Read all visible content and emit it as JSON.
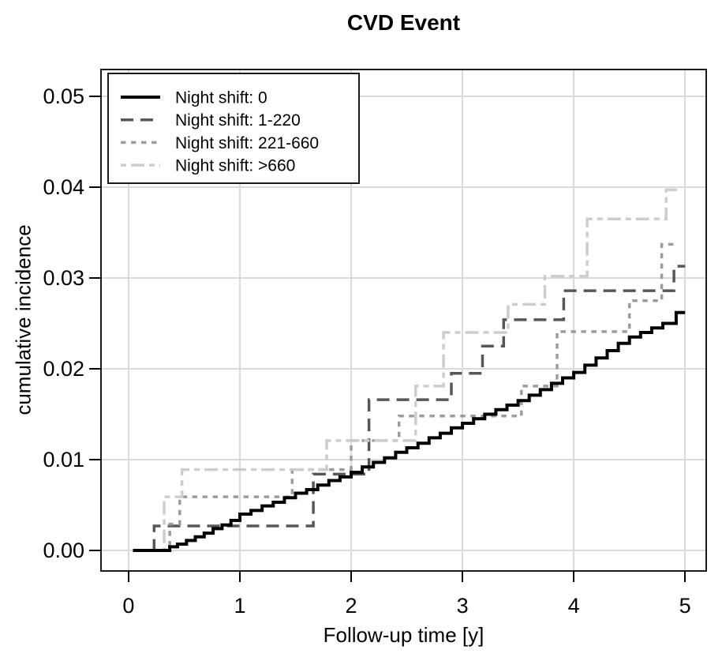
{
  "colors": {
    "background": "#FFFFFF",
    "text": "#000000",
    "grid": "#DADADA",
    "plot_border": "#1A1A1A",
    "legend_border": "#1A1A1A",
    "legend_fill": "#FFFFFF"
  },
  "chart_data": {
    "type": "line",
    "subtype": "step-function-cumulative-incidence",
    "title": "CVD Event",
    "xlabel": "Follow-up time [y]",
    "ylabel": "cumulative incidence",
    "xlim": [
      0,
      5
    ],
    "ylim": [
      0,
      0.05
    ],
    "grid": true,
    "legend_position": "top-left",
    "x_ticks": [
      {
        "value": 0,
        "label": "0"
      },
      {
        "value": 1,
        "label": "1"
      },
      {
        "value": 2,
        "label": "2"
      },
      {
        "value": 3,
        "label": "3"
      },
      {
        "value": 4,
        "label": "4"
      },
      {
        "value": 5,
        "label": "5"
      }
    ],
    "y_ticks": [
      {
        "value": 0.0,
        "label": "0.00"
      },
      {
        "value": 0.01,
        "label": "0.01"
      },
      {
        "value": 0.02,
        "label": "0.02"
      },
      {
        "value": 0.03,
        "label": "0.03"
      },
      {
        "value": 0.04,
        "label": "0.04"
      },
      {
        "value": 0.05,
        "label": "0.05"
      }
    ],
    "series": [
      {
        "name": "Night shift: 0",
        "color": "#000000",
        "dash": "solid",
        "end_x": 5.0,
        "points": [
          [
            0.04,
            0
          ],
          [
            0.37,
            0.0004
          ],
          [
            0.44,
            0.0007
          ],
          [
            0.52,
            0.0011
          ],
          [
            0.6,
            0.0015
          ],
          [
            0.68,
            0.0019
          ],
          [
            0.76,
            0.0024
          ],
          [
            0.84,
            0.0028
          ],
          [
            0.92,
            0.0033
          ],
          [
            1.0,
            0.004
          ],
          [
            1.1,
            0.0044
          ],
          [
            1.2,
            0.0049
          ],
          [
            1.3,
            0.0053
          ],
          [
            1.4,
            0.0058
          ],
          [
            1.5,
            0.0063
          ],
          [
            1.6,
            0.0067
          ],
          [
            1.7,
            0.0072
          ],
          [
            1.8,
            0.0077
          ],
          [
            1.9,
            0.0081
          ],
          [
            2.0,
            0.0086
          ],
          [
            2.1,
            0.0092
          ],
          [
            2.2,
            0.0097
          ],
          [
            2.3,
            0.0102
          ],
          [
            2.4,
            0.0108
          ],
          [
            2.5,
            0.0113
          ],
          [
            2.6,
            0.0118
          ],
          [
            2.7,
            0.0124
          ],
          [
            2.8,
            0.0129
          ],
          [
            2.9,
            0.0135
          ],
          [
            3.0,
            0.014
          ],
          [
            3.1,
            0.0145
          ],
          [
            3.2,
            0.015
          ],
          [
            3.3,
            0.0155
          ],
          [
            3.4,
            0.016
          ],
          [
            3.5,
            0.0165
          ],
          [
            3.6,
            0.0171
          ],
          [
            3.7,
            0.0177
          ],
          [
            3.8,
            0.0184
          ],
          [
            3.9,
            0.019
          ],
          [
            4.0,
            0.0196
          ],
          [
            4.1,
            0.0204
          ],
          [
            4.2,
            0.0212
          ],
          [
            4.3,
            0.022
          ],
          [
            4.4,
            0.0228
          ],
          [
            4.5,
            0.0235
          ],
          [
            4.6,
            0.024
          ],
          [
            4.7,
            0.0245
          ],
          [
            4.8,
            0.025
          ],
          [
            4.92,
            0.0262
          ]
        ]
      },
      {
        "name": "Night shift: 1-220",
        "color": "#575757",
        "dash": "longdash",
        "end_x": 5.0,
        "points": [
          [
            0.04,
            0
          ],
          [
            0.23,
            0.0027
          ],
          [
            1.66,
            0.0084
          ],
          [
            2.16,
            0.0166
          ],
          [
            2.9,
            0.0195
          ],
          [
            3.18,
            0.0225
          ],
          [
            3.37,
            0.0254
          ],
          [
            3.91,
            0.0286
          ],
          [
            4.9,
            0.0313
          ]
        ]
      },
      {
        "name": "Night shift: 221-660",
        "color": "#9C9C9C",
        "dash": "dotted",
        "end_x": 4.94,
        "points": [
          [
            0.04,
            0
          ],
          [
            0.37,
            0.0029
          ],
          [
            0.46,
            0.0059
          ],
          [
            1.47,
            0.0089
          ],
          [
            2.0,
            0.0121
          ],
          [
            2.43,
            0.0148
          ],
          [
            3.53,
            0.0181
          ],
          [
            3.85,
            0.0241
          ],
          [
            4.5,
            0.0275
          ],
          [
            4.79,
            0.0337
          ]
        ]
      },
      {
        "name": "Night shift: >660",
        "color": "#CDCDCD",
        "dash": "twodash",
        "end_x": 4.97,
        "points": [
          [
            0.04,
            0
          ],
          [
            0.32,
            0.0059
          ],
          [
            0.48,
            0.0089
          ],
          [
            1.78,
            0.0121
          ],
          [
            2.58,
            0.0181
          ],
          [
            2.83,
            0.024
          ],
          [
            3.41,
            0.0271
          ],
          [
            3.74,
            0.0302
          ],
          [
            4.12,
            0.0365
          ],
          [
            4.83,
            0.0397
          ]
        ]
      }
    ]
  }
}
